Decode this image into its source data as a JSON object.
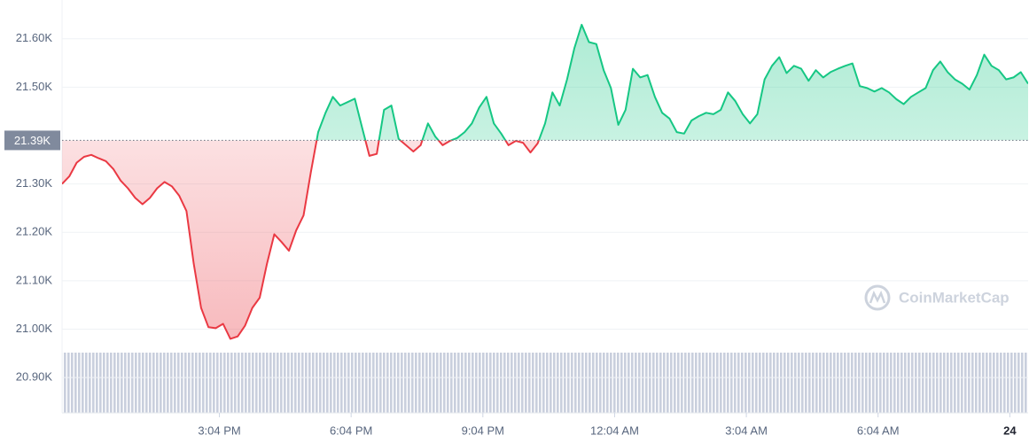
{
  "chart_data": {
    "type": "line",
    "watermark": "CoinMarketCap",
    "baseline": {
      "value": 21390,
      "label": "21.39K"
    },
    "up_color": "#16c784",
    "down_color": "#ea3943",
    "grid": true,
    "xlim": [
      0,
      132
    ],
    "xticks": [
      {
        "value": 21.5,
        "label": "3:04 PM"
      },
      {
        "value": 39.5,
        "label": "6:04 PM"
      },
      {
        "value": 57.5,
        "label": "9:04 PM"
      },
      {
        "value": 75.5,
        "label": "12:04 AM"
      },
      {
        "value": 93.5,
        "label": "3:04 AM"
      },
      {
        "value": 111.5,
        "label": "6:04 AM"
      },
      {
        "value": 129.5,
        "label": "24"
      }
    ],
    "ylim": [
      20827,
      21680
    ],
    "yticks": [
      {
        "value": 20900,
        "label": "20.90K"
      },
      {
        "value": 21000,
        "label": "21.00K"
      },
      {
        "value": 21100,
        "label": "21.10K"
      },
      {
        "value": 21200,
        "label": "21.20K"
      },
      {
        "value": 21300,
        "label": "21.30K"
      },
      {
        "value": 21500,
        "label": "21.50K"
      },
      {
        "value": 21600,
        "label": "21.60K"
      }
    ],
    "values": [
      21300,
      21316,
      21344,
      21356,
      21360,
      21353,
      21347,
      21331,
      21307,
      21291,
      21271,
      21258,
      21271,
      21291,
      21304,
      21295,
      21276,
      21244,
      21135,
      21044,
      21004,
      21002,
      21011,
      20980,
      20985,
      21007,
      21044,
      21065,
      21135,
      21196,
      21180,
      21162,
      21204,
      21235,
      21325,
      21407,
      21447,
      21480,
      21462,
      21469,
      21476,
      21416,
      21358,
      21362,
      21453,
      21462,
      21393,
      21380,
      21367,
      21380,
      21425,
      21398,
      21380,
      21389,
      21395,
      21407,
      21425,
      21458,
      21480,
      21425,
      21404,
      21380,
      21389,
      21385,
      21365,
      21384,
      21425,
      21489,
      21462,
      21516,
      21580,
      21629,
      21593,
      21589,
      21535,
      21498,
      21422,
      21453,
      21538,
      21520,
      21525,
      21480,
      21447,
      21435,
      21407,
      21404,
      21431,
      21440,
      21447,
      21444,
      21453,
      21489,
      21471,
      21444,
      21425,
      21444,
      21516,
      21544,
      21562,
      21529,
      21544,
      21538,
      21513,
      21535,
      21520,
      21531,
      21538,
      21544,
      21549,
      21502,
      21498,
      21491,
      21498,
      21489,
      21475,
      21465,
      21480,
      21489,
      21498,
      21535,
      21553,
      21531,
      21516,
      21507,
      21495,
      21525,
      21567,
      21544,
      21535,
      21516,
      21520,
      21531,
      21507
    ]
  }
}
